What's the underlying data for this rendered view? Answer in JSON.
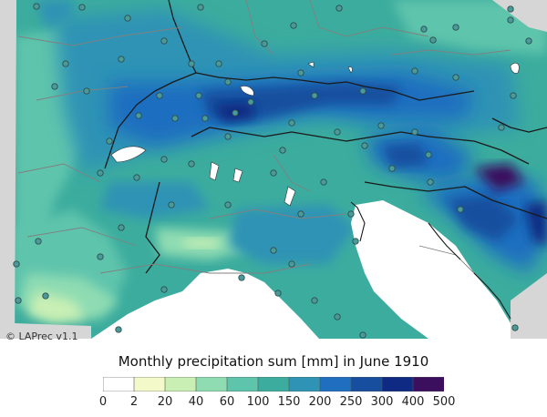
{
  "map": {
    "credit": "© LAPrec v1.1",
    "title": "Monthly precipitation sum [mm] in June 1910",
    "colors": {
      "background_grey": "#d6d6d6",
      "sea": "#ffffff",
      "border_dark": "#1a1a1a",
      "border_grey": "#7a7a7a",
      "lake": "#ffffff",
      "station_fill": "#4a9a9a",
      "station_stroke": "#2d4d4d"
    },
    "legend": {
      "breaks": [
        "0",
        "2",
        "20",
        "40",
        "60",
        "100",
        "150",
        "200",
        "250",
        "300",
        "400",
        "500"
      ],
      "colors": [
        "#ffffff",
        "#f3f9c8",
        "#c9efb4",
        "#8fdcb2",
        "#5fc4ac",
        "#3cac9e",
        "#2f93b5",
        "#1f6ec0",
        "#174f9e",
        "#0f2a82",
        "#3b0f5e"
      ]
    }
  }
}
